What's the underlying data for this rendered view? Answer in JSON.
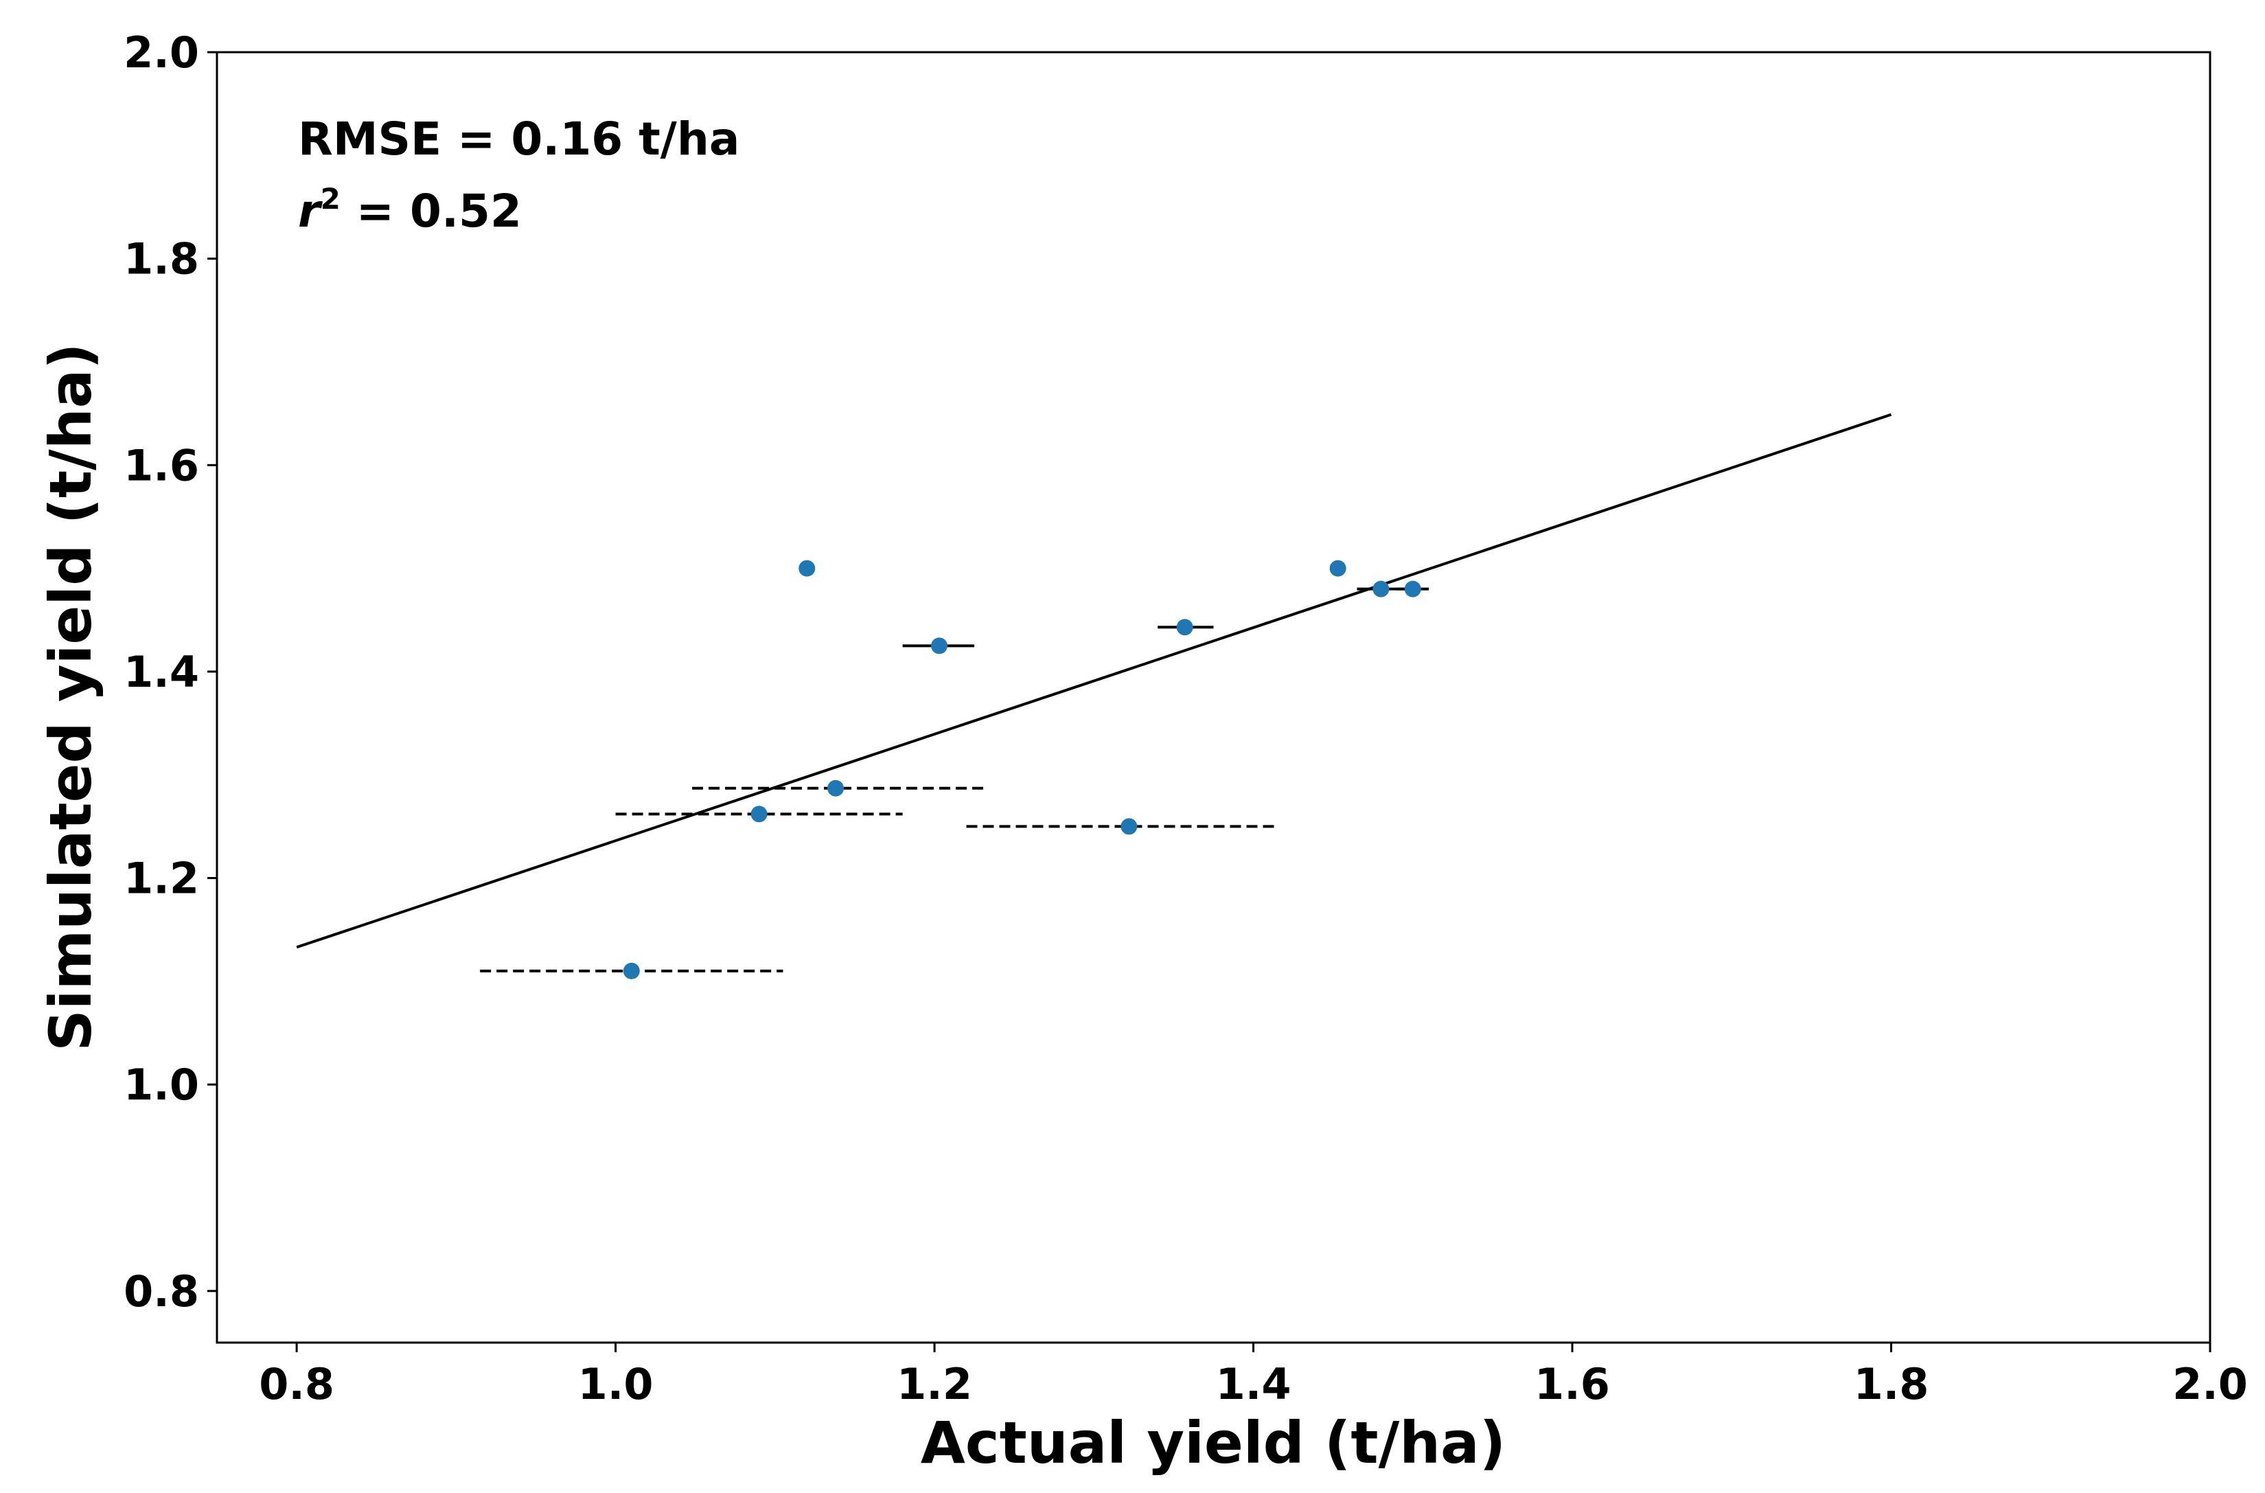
{
  "chart_data": {
    "type": "scatter",
    "xlabel": "Actual yield (t/ha)",
    "ylabel": "Simulated yield (t/ha)",
    "xlim": [
      0.75,
      2.0
    ],
    "ylim": [
      0.75,
      2.0
    ],
    "xticks": [
      0.8,
      1.0,
      1.2,
      1.4,
      1.6,
      1.8,
      2.0
    ],
    "yticks": [
      0.8,
      1.0,
      1.2,
      1.4,
      1.6,
      1.8,
      2.0
    ],
    "xtick_labels": [
      "0.8",
      "1.0",
      "1.2",
      "1.4",
      "1.6",
      "1.8",
      "2.0"
    ],
    "ytick_labels": [
      "0.8",
      "1.0",
      "1.2",
      "1.4",
      "1.6",
      "1.8",
      "2.0"
    ],
    "grid": false,
    "annotations": {
      "rmse": "RMSE = 0.16 t/ha",
      "r2_symbol": "r",
      "r2_exponent": "2",
      "r2_value": " = 0.52"
    },
    "points": [
      {
        "x": 1.01,
        "y": 1.11,
        "x_err_low": 0.915,
        "x_err_high": 1.105
      },
      {
        "x": 1.09,
        "y": 1.262,
        "x_err_low": 1.0,
        "x_err_high": 1.18
      },
      {
        "x": 1.138,
        "y": 1.287,
        "x_err_low": 1.048,
        "x_err_high": 1.232
      },
      {
        "x": 1.12,
        "y": 1.5,
        "x_err_low": null,
        "x_err_high": null
      },
      {
        "x": 1.203,
        "y": 1.425,
        "x_err_low": 1.18,
        "x_err_high": 1.225
      },
      {
        "x": 1.322,
        "y": 1.25,
        "x_err_low": 1.22,
        "x_err_high": 1.415
      },
      {
        "x": 1.357,
        "y": 1.443,
        "x_err_low": 1.34,
        "x_err_high": 1.375
      },
      {
        "x": 1.453,
        "y": 1.5,
        "x_err_low": null,
        "x_err_high": null
      },
      {
        "x": 1.48,
        "y": 1.48,
        "x_err_low": 1.465,
        "x_err_high": 1.495
      },
      {
        "x": 1.5,
        "y": 1.48,
        "x_err_low": 1.49,
        "x_err_high": 1.51
      }
    ],
    "fit_line": {
      "x": [
        0.8,
        1.8
      ],
      "y": [
        1.133,
        1.649
      ]
    },
    "colors": {
      "points": "#1f77b4",
      "line": "#000000",
      "errorbar": "#000000",
      "axes": "#000000"
    }
  }
}
